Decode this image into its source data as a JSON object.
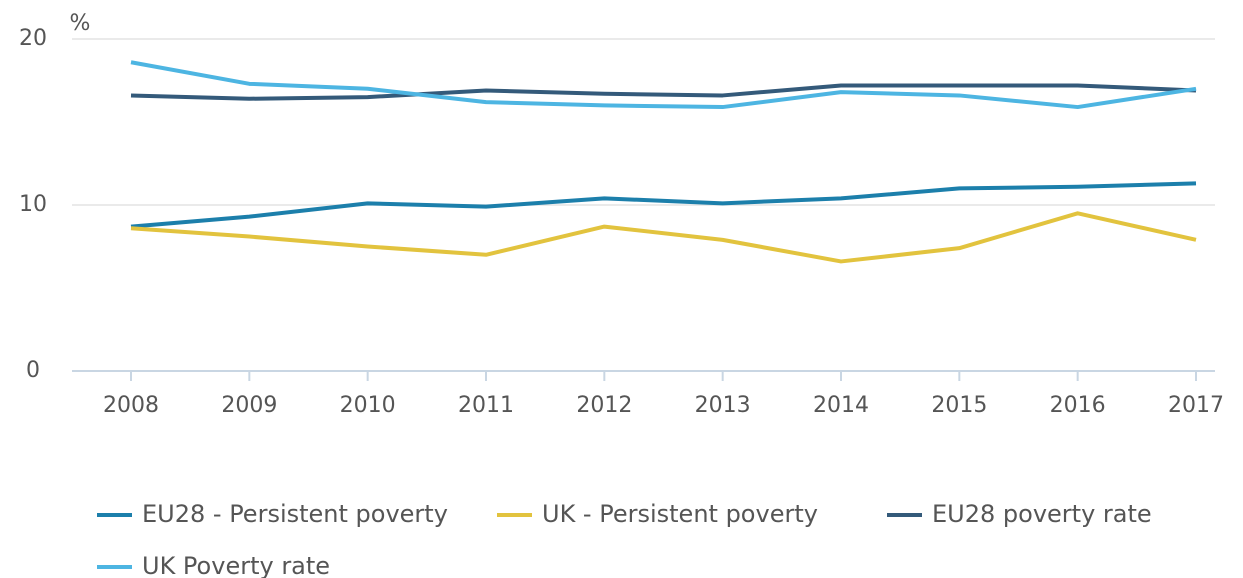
{
  "chart_data": {
    "type": "line",
    "y_label": "%",
    "categories": [
      "2008",
      "2009",
      "2010",
      "2011",
      "2012",
      "2013",
      "2014",
      "2015",
      "2016",
      "2017"
    ],
    "series": [
      {
        "name": "EU28 - Persistent poverty",
        "color": "#1c7fab",
        "values": [
          8.7,
          9.3,
          10.1,
          9.9,
          10.4,
          10.1,
          10.4,
          11.0,
          11.1,
          11.3
        ]
      },
      {
        "name": "UK - Persistent poverty",
        "color": "#e2c33e",
        "values": [
          8.6,
          8.1,
          7.5,
          7.0,
          8.7,
          7.9,
          6.6,
          7.4,
          9.5,
          7.9
        ]
      },
      {
        "name": "EU28 poverty rate",
        "color": "#345a7a",
        "values": [
          16.6,
          16.4,
          16.5,
          16.9,
          16.7,
          16.6,
          17.2,
          17.2,
          17.2,
          16.9
        ]
      },
      {
        "name": "UK Poverty rate",
        "color": "#4db5e2",
        "values": [
          18.6,
          17.3,
          17.0,
          16.2,
          16.0,
          15.9,
          16.8,
          16.6,
          15.9,
          17.0
        ]
      }
    ],
    "ylim": [
      0,
      20
    ],
    "yticks": [
      0,
      10,
      20
    ],
    "grid": true,
    "legend": "bottom"
  }
}
